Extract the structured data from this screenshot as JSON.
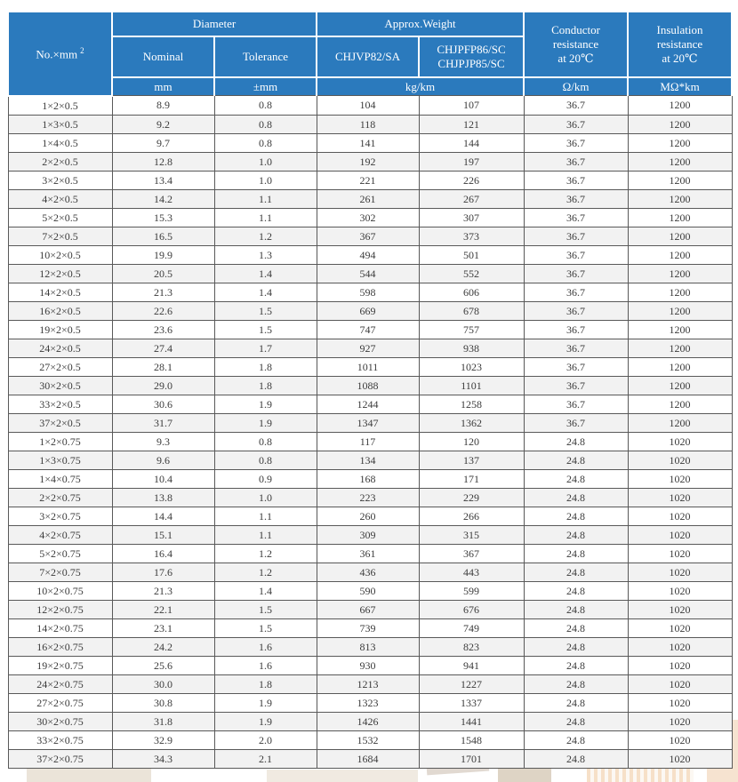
{
  "colors": {
    "header_bg": "#2b7abd",
    "header_text": "#ffffff",
    "row_alt_bg": "#f2f2f2",
    "border": "#595959",
    "body_text": "#3b3b3b"
  },
  "table": {
    "header": {
      "col_no": "No.×mm",
      "col_no_sup": "2",
      "group_diameter": "Diameter",
      "group_weight": "Approx.Weight",
      "col_nominal": "Nominal",
      "col_tolerance": "Tolerance",
      "col_weight_sa": "CHJVP82/SA",
      "col_weight_sc": "CHJPFP86/SC\nCHJPJP85/SC",
      "col_conductor": "Conductor\nresistance\nat 20℃",
      "col_insulation": "Insulation\nresistance\nat 20℃",
      "unit_mm": "mm",
      "unit_tolerance": "±mm",
      "unit_weight": "kg/km",
      "unit_conductor": "Ω/km",
      "unit_insulation": "MΩ*km"
    },
    "rows": [
      [
        "1×2×0.5",
        "8.9",
        "0.8",
        "104",
        "107",
        "36.7",
        "1200"
      ],
      [
        "1×3×0.5",
        "9.2",
        "0.8",
        "118",
        "121",
        "36.7",
        "1200"
      ],
      [
        "1×4×0.5",
        "9.7",
        "0.8",
        "141",
        "144",
        "36.7",
        "1200"
      ],
      [
        "2×2×0.5",
        "12.8",
        "1.0",
        "192",
        "197",
        "36.7",
        "1200"
      ],
      [
        "3×2×0.5",
        "13.4",
        "1.0",
        "221",
        "226",
        "36.7",
        "1200"
      ],
      [
        "4×2×0.5",
        "14.2",
        "1.1",
        "261",
        "267",
        "36.7",
        "1200"
      ],
      [
        "5×2×0.5",
        "15.3",
        "1.1",
        "302",
        "307",
        "36.7",
        "1200"
      ],
      [
        "7×2×0.5",
        "16.5",
        "1.2",
        "367",
        "373",
        "36.7",
        "1200"
      ],
      [
        "10×2×0.5",
        "19.9",
        "1.3",
        "494",
        "501",
        "36.7",
        "1200"
      ],
      [
        "12×2×0.5",
        "20.5",
        "1.4",
        "544",
        "552",
        "36.7",
        "1200"
      ],
      [
        "14×2×0.5",
        "21.3",
        "1.4",
        "598",
        "606",
        "36.7",
        "1200"
      ],
      [
        "16×2×0.5",
        "22.6",
        "1.5",
        "669",
        "678",
        "36.7",
        "1200"
      ],
      [
        "19×2×0.5",
        "23.6",
        "1.5",
        "747",
        "757",
        "36.7",
        "1200"
      ],
      [
        "24×2×0.5",
        "27.4",
        "1.7",
        "927",
        "938",
        "36.7",
        "1200"
      ],
      [
        "27×2×0.5",
        "28.1",
        "1.8",
        "1011",
        "1023",
        "36.7",
        "1200"
      ],
      [
        "30×2×0.5",
        "29.0",
        "1.8",
        "1088",
        "1101",
        "36.7",
        "1200"
      ],
      [
        "33×2×0.5",
        "30.6",
        "1.9",
        "1244",
        "1258",
        "36.7",
        "1200"
      ],
      [
        "37×2×0.5",
        "31.7",
        "1.9",
        "1347",
        "1362",
        "36.7",
        "1200"
      ],
      [
        "1×2×0.75",
        "9.3",
        "0.8",
        "117",
        "120",
        "24.8",
        "1020"
      ],
      [
        "1×3×0.75",
        "9.6",
        "0.8",
        "134",
        "137",
        "24.8",
        "1020"
      ],
      [
        "1×4×0.75",
        "10.4",
        "0.9",
        "168",
        "171",
        "24.8",
        "1020"
      ],
      [
        "2×2×0.75",
        "13.8",
        "1.0",
        "223",
        "229",
        "24.8",
        "1020"
      ],
      [
        "3×2×0.75",
        "14.4",
        "1.1",
        "260",
        "266",
        "24.8",
        "1020"
      ],
      [
        "4×2×0.75",
        "15.1",
        "1.1",
        "309",
        "315",
        "24.8",
        "1020"
      ],
      [
        "5×2×0.75",
        "16.4",
        "1.2",
        "361",
        "367",
        "24.8",
        "1020"
      ],
      [
        "7×2×0.75",
        "17.6",
        "1.2",
        "436",
        "443",
        "24.8",
        "1020"
      ],
      [
        "10×2×0.75",
        "21.3",
        "1.4",
        "590",
        "599",
        "24.8",
        "1020"
      ],
      [
        "12×2×0.75",
        "22.1",
        "1.5",
        "667",
        "676",
        "24.8",
        "1020"
      ],
      [
        "14×2×0.75",
        "23.1",
        "1.5",
        "739",
        "749",
        "24.8",
        "1020"
      ],
      [
        "16×2×0.75",
        "24.2",
        "1.6",
        "813",
        "823",
        "24.8",
        "1020"
      ],
      [
        "19×2×0.75",
        "25.6",
        "1.6",
        "930",
        "941",
        "24.8",
        "1020"
      ],
      [
        "24×2×0.75",
        "30.0",
        "1.8",
        "1213",
        "1227",
        "24.8",
        "1020"
      ],
      [
        "27×2×0.75",
        "30.8",
        "1.9",
        "1323",
        "1337",
        "24.8",
        "1020"
      ],
      [
        "30×2×0.75",
        "31.8",
        "1.9",
        "1426",
        "1441",
        "24.8",
        "1020"
      ],
      [
        "33×2×0.75",
        "32.9",
        "2.0",
        "1532",
        "1548",
        "24.8",
        "1020"
      ],
      [
        "37×2×0.75",
        "34.3",
        "2.1",
        "1684",
        "1701",
        "24.8",
        "1020"
      ]
    ]
  }
}
